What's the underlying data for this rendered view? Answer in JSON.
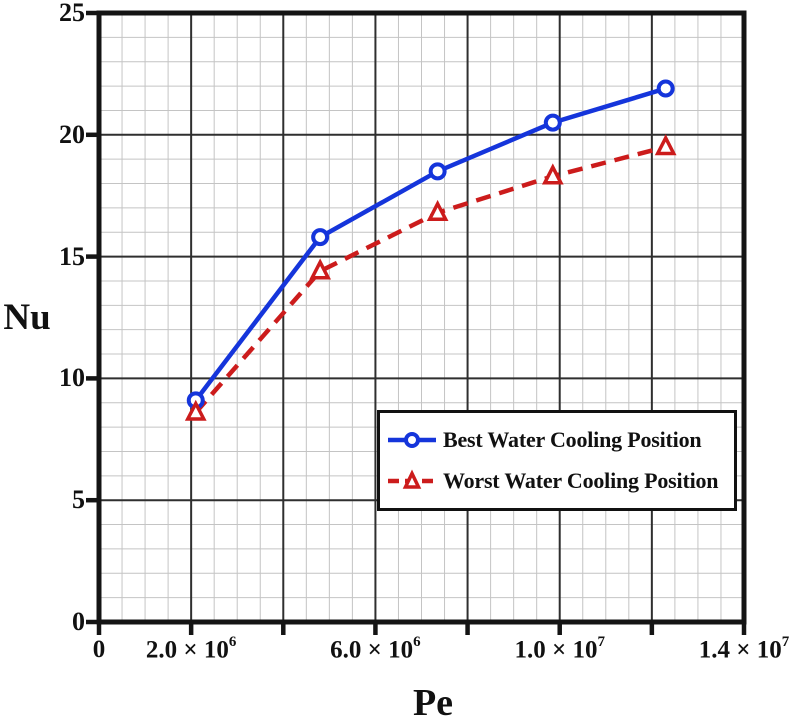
{
  "colors": {
    "background": "#ffffff",
    "axis": "#141414",
    "grid_major": "#2f2f2f",
    "grid_minor": "#c4c4c4",
    "text": "#111111",
    "series_best": "#1535db",
    "series_worst": "#cc1c1c",
    "marker_fill": "#ffffff"
  },
  "chart_data": {
    "type": "line",
    "title": "",
    "xlabel": "Pe",
    "ylabel": "Nu",
    "xlim": [
      0,
      14000000
    ],
    "ylim": [
      0,
      25
    ],
    "x_major_step": 2000000,
    "x_minor_step": 500000,
    "y_major_step": 5,
    "y_minor_step": 1,
    "grid": true,
    "legend_position": "inside-right-middle",
    "x": [
      2100000,
      4800000,
      7350000,
      9850000,
      12300000
    ],
    "series": [
      {
        "name": "Best Water Cooling Position",
        "values": [
          9.1,
          15.8,
          18.5,
          20.5,
          21.9
        ],
        "color": "#1535db",
        "marker": "circle",
        "line_style": "solid"
      },
      {
        "name": "Worst Water Cooling Position",
        "values": [
          8.6,
          14.4,
          16.8,
          18.3,
          19.5
        ],
        "color": "#cc1c1c",
        "marker": "triangle",
        "line_style": "dashed"
      }
    ],
    "x_tick_labels": [
      {
        "mantissa": "0",
        "exp": "",
        "value": 0
      },
      {
        "mantissa": "2.0 × 10",
        "exp": "6",
        "value": 2000000
      },
      {
        "mantissa": "6.0 × 10",
        "exp": "6",
        "value": 6000000
      },
      {
        "mantissa": "1.0 × 10",
        "exp": "7",
        "value": 10000000
      },
      {
        "mantissa": "1.4 × 10",
        "exp": "7",
        "value": 14000000
      }
    ],
    "y_tick_labels": [
      {
        "text": "0",
        "value": 0
      },
      {
        "text": "5",
        "value": 5
      },
      {
        "text": "10",
        "value": 10
      },
      {
        "text": "15",
        "value": 15
      },
      {
        "text": "20",
        "value": 20
      },
      {
        "text": "25",
        "value": 25
      }
    ]
  }
}
